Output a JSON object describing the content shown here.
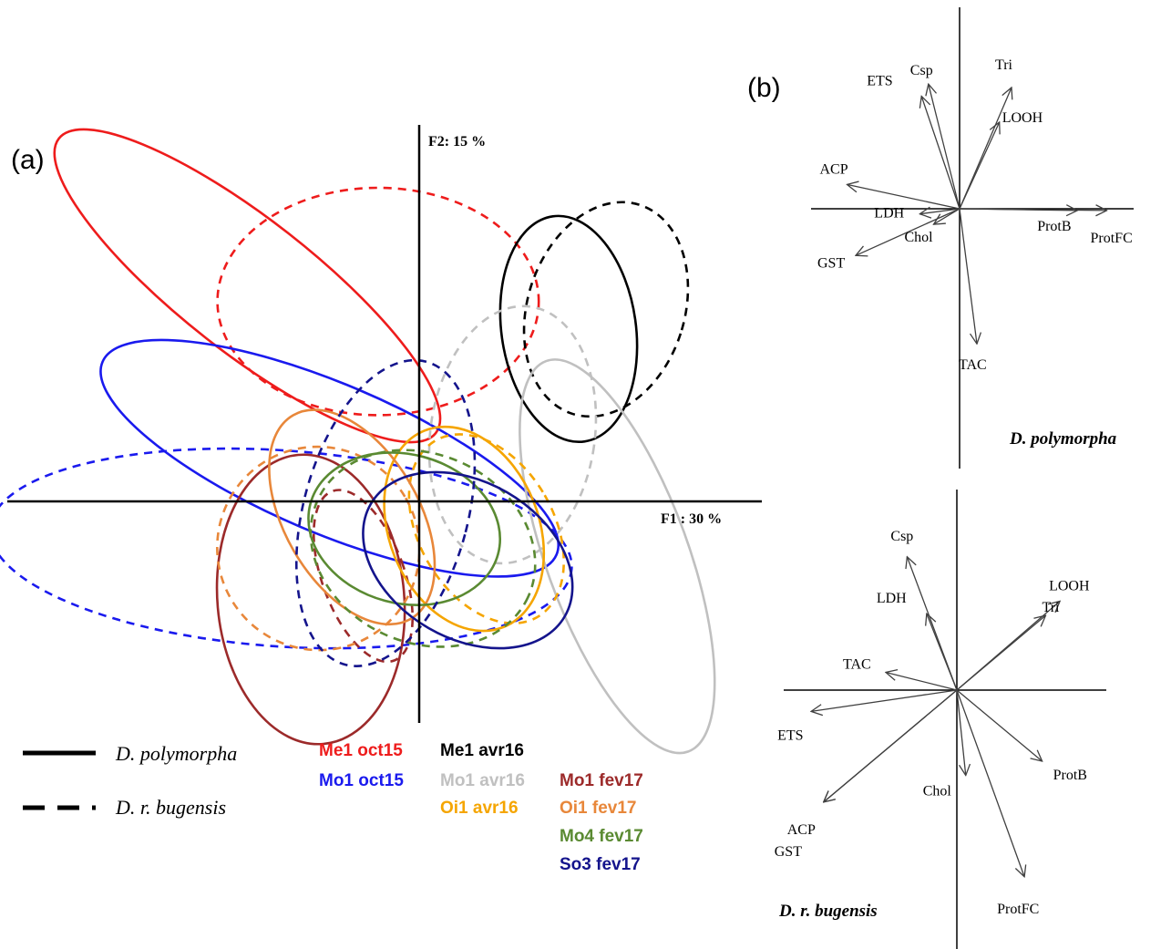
{
  "panel_a": {
    "label": "(a)",
    "x_axis_label": "F1 : 30 %",
    "y_axis_label": "F2: 15 %"
  },
  "panel_b": {
    "label": "(b)",
    "top_species": "D. polymorpha",
    "bottom_species": "D. r. bugensis"
  },
  "legend": {
    "solid_label": "D. polymorpha",
    "dashed_label": "D. r. bugensis",
    "groups": [
      {
        "label": "Me1 oct15",
        "color": "#ee1c1c"
      },
      {
        "label": "Me1 avr16",
        "color": "#000000"
      },
      {
        "label": "Mo1 oct15",
        "color": "#1a1aee"
      },
      {
        "label": "Mo1 avr16",
        "color": "#c0c0c0"
      },
      {
        "label": "Mo1 fev17",
        "color": "#9c2a2a"
      },
      {
        "label": "Oi1 avr16",
        "color": "#f5a500"
      },
      {
        "label": "Oi1 fev17",
        "color": "#e8873a"
      },
      {
        "label": "Mo4 fev17",
        "color": "#5a8a32"
      },
      {
        "label": "So3 fev17",
        "color": "#14148c"
      }
    ]
  },
  "chart_data": [
    {
      "type": "scatter",
      "title": "",
      "xlabel": "F1 : 30 %",
      "ylabel": "F2: 15 %",
      "description_of_marks": "confidence ellipses per group; solid = D. polymorpha, dashed = D. r. bugensis",
      "ellipses": [
        {
          "group": "Me1 oct15",
          "species": "D. polymorpha",
          "style": "solid",
          "color": "#ee1c1c",
          "cx": -2.3,
          "cy": 2.75,
          "rx": 3.2,
          "ry": 0.85,
          "angle": 38
        },
        {
          "group": "Me1 oct15",
          "species": "D. r. bugensis",
          "style": "dashed",
          "color": "#ee1c1c",
          "cx": -0.55,
          "cy": 2.55,
          "rx": 2.15,
          "ry": 1.45,
          "angle": 0
        },
        {
          "group": "Me1 avr16",
          "species": "D. polymorpha",
          "style": "solid",
          "color": "#000000",
          "cx": 2.0,
          "cy": 2.2,
          "rx": 0.9,
          "ry": 1.45,
          "angle": -8
        },
        {
          "group": "Me1 avr16",
          "species": "D. r. bugensis",
          "style": "dashed",
          "color": "#000000",
          "cx": 2.5,
          "cy": 2.45,
          "rx": 1.05,
          "ry": 1.4,
          "angle": 18
        },
        {
          "group": "Mo1 oct15",
          "species": "D. polymorpha",
          "style": "solid",
          "color": "#1a1aee",
          "cx": -1.2,
          "cy": 0.55,
          "rx": 3.3,
          "ry": 0.95,
          "angle": 23
        },
        {
          "group": "Mo1 oct15",
          "species": "D. r. bugensis",
          "style": "dashed",
          "color": "#1a1aee",
          "cx": -1.85,
          "cy": -0.6,
          "rx": 3.9,
          "ry": 1.25,
          "angle": 4
        },
        {
          "group": "Mo1 avr16",
          "species": "D. polymorpha",
          "style": "solid",
          "color": "#c0c0c0",
          "cx": 2.65,
          "cy": -0.7,
          "rx": 0.95,
          "ry": 2.65,
          "angle": -20
        },
        {
          "group": "Mo1 avr16",
          "species": "D. r. bugensis",
          "style": "dashed",
          "color": "#c0c0c0",
          "cx": 1.25,
          "cy": 0.85,
          "rx": 1.1,
          "ry": 1.65,
          "angle": 8
        },
        {
          "group": "Mo1 fev17",
          "species": "D. polymorpha",
          "style": "solid",
          "color": "#9c2a2a",
          "cx": -1.45,
          "cy": -1.25,
          "rx": 1.25,
          "ry": 1.85,
          "angle": -5
        },
        {
          "group": "Mo1 fev17",
          "species": "D. r. bugensis",
          "style": "dashed",
          "color": "#9c2a2a",
          "cx": -0.75,
          "cy": -0.95,
          "rx": 0.55,
          "ry": 1.15,
          "angle": -20
        },
        {
          "group": "Oi1 avr16",
          "species": "D. polymorpha",
          "style": "solid",
          "color": "#f5a500",
          "cx": 0.6,
          "cy": -0.35,
          "rx": 1.0,
          "ry": 1.35,
          "angle": -22
        },
        {
          "group": "Oi1 avr16",
          "species": "D. r. bugensis",
          "style": "dashed",
          "color": "#f5a500",
          "cx": 0.9,
          "cy": -0.35,
          "rx": 0.9,
          "ry": 1.3,
          "angle": -30
        },
        {
          "group": "Oi1 fev17",
          "species": "D. polymorpha",
          "style": "solid",
          "color": "#e8873a",
          "cx": -0.9,
          "cy": -0.2,
          "rx": 0.9,
          "ry": 1.5,
          "angle": -30
        },
        {
          "group": "Oi1 fev17",
          "species": "D. r. bugensis",
          "style": "dashed",
          "color": "#e8873a",
          "cx": -1.35,
          "cy": -0.6,
          "rx": 1.35,
          "ry": 1.3,
          "angle": -30
        },
        {
          "group": "Mo4 fev17",
          "species": "D. polymorpha",
          "style": "solid",
          "color": "#5a8a32",
          "cx": -0.2,
          "cy": -0.35,
          "rx": 1.3,
          "ry": 0.95,
          "angle": 15
        },
        {
          "group": "Mo4 fev17",
          "species": "D. r. bugensis",
          "style": "dashed",
          "color": "#5a8a32",
          "cx": 0.05,
          "cy": -0.6,
          "rx": 1.55,
          "ry": 1.2,
          "angle": 25
        },
        {
          "group": "So3 fev17",
          "species": "D. polymorpha",
          "style": "solid",
          "color": "#14148c",
          "cx": 0.65,
          "cy": -0.75,
          "rx": 1.5,
          "ry": 1.0,
          "angle": 30
        },
        {
          "group": "So3 fev17",
          "species": "D. r. bugensis",
          "style": "dashed",
          "color": "#14148c",
          "cx": -0.45,
          "cy": -0.15,
          "rx": 1.1,
          "ry": 2.0,
          "angle": 15
        }
      ],
      "xlim": [
        -5.5,
        4.5
      ],
      "ylim": [
        -2.8,
        4.6
      ],
      "grid": false,
      "legend_position": "bottom"
    },
    {
      "type": "scatter",
      "title": "D. polymorpha",
      "description_of_marks": "variable loading vectors (correlation circle) on F1/F2",
      "vectors": [
        {
          "name": "Tri",
          "x": 0.3,
          "y": 0.7
        },
        {
          "name": "LOOH",
          "x": 0.23,
          "y": 0.5
        },
        {
          "name": "Csp",
          "x": -0.18,
          "y": 0.72
        },
        {
          "name": "ETS",
          "x": -0.22,
          "y": 0.65
        },
        {
          "name": "ACP",
          "x": -0.65,
          "y": 0.14
        },
        {
          "name": "LDH",
          "x": -0.23,
          "y": -0.03
        },
        {
          "name": "GST",
          "x": -0.6,
          "y": -0.27
        },
        {
          "name": "Chol",
          "x": -0.15,
          "y": -0.09
        },
        {
          "name": "ProtB",
          "x": 0.68,
          "y": -0.01
        },
        {
          "name": "ProtFC",
          "x": 0.85,
          "y": -0.01
        },
        {
          "name": "TAC",
          "x": 0.1,
          "y": -0.78
        }
      ]
    },
    {
      "type": "scatter",
      "title": "D. r. bugensis",
      "description_of_marks": "variable loading vectors (correlation circle) on F1/F2",
      "vectors": [
        {
          "name": "Csp",
          "x": -0.28,
          "y": 0.75
        },
        {
          "name": "LDH",
          "x": -0.17,
          "y": 0.43
        },
        {
          "name": "LOOH",
          "x": 0.58,
          "y": 0.5
        },
        {
          "name": "Tri",
          "x": 0.5,
          "y": 0.42
        },
        {
          "name": "TAC",
          "x": -0.4,
          "y": 0.1
        },
        {
          "name": "ETS",
          "x": -0.82,
          "y": -0.12
        },
        {
          "name": "ACP",
          "x": -0.75,
          "y": -0.63
        },
        {
          "name": "GST",
          "x": -0.75,
          "y": -0.63
        },
        {
          "name": "Chol",
          "x": 0.05,
          "y": -0.48
        },
        {
          "name": "ProtB",
          "x": 0.48,
          "y": -0.4
        },
        {
          "name": "ProtFC",
          "x": 0.38,
          "y": -1.05
        }
      ]
    }
  ]
}
